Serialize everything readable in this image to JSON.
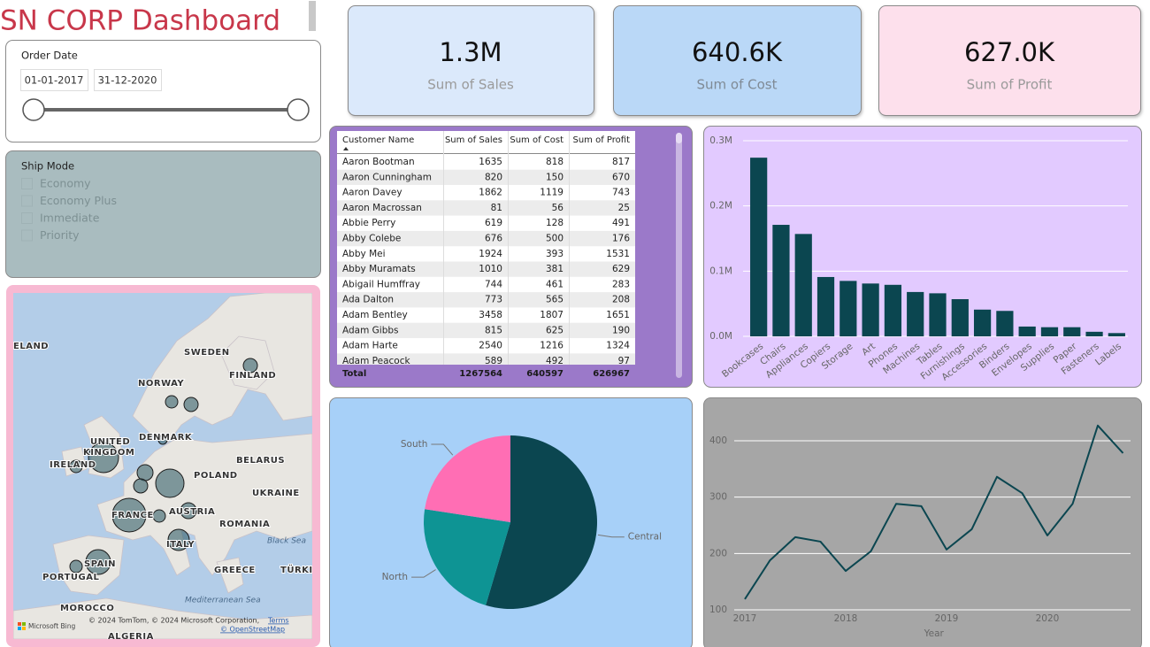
{
  "header": {
    "title": "SN CORP Dashboard"
  },
  "filters": {
    "order_date": {
      "label": "Order Date",
      "start": "01-01-2017",
      "end": "31-12-2020"
    },
    "ship_mode": {
      "label": "Ship Mode",
      "options": [
        "Economy",
        "Economy Plus",
        "Immediate",
        "Priority"
      ]
    }
  },
  "kpis": [
    {
      "value": "1.3M",
      "label": "Sum of Sales"
    },
    {
      "value": "640.6K",
      "label": "Sum of Cost"
    },
    {
      "value": "627.0K",
      "label": "Sum of Profit"
    }
  ],
  "table": {
    "columns": [
      "Customer Name",
      "Sum of Sales",
      "Sum of Cost",
      "Sum of Profit"
    ],
    "rows": [
      [
        "Aaron Bootman",
        1635,
        818,
        817
      ],
      [
        "Aaron Cunningham",
        820,
        150,
        670
      ],
      [
        "Aaron Davey",
        1862,
        1119,
        743
      ],
      [
        "Aaron Macrossan",
        81,
        56,
        25
      ],
      [
        "Abbie Perry",
        619,
        128,
        491
      ],
      [
        "Abby Colebe",
        676,
        500,
        176
      ],
      [
        "Abby Mei",
        1924,
        393,
        1531
      ],
      [
        "Abby Muramats",
        1010,
        381,
        629
      ],
      [
        "Abigail Humffray",
        744,
        461,
        283
      ],
      [
        "Ada Dalton",
        773,
        565,
        208
      ],
      [
        "Adam Bentley",
        3458,
        1807,
        1651
      ],
      [
        "Adam Gibbs",
        815,
        625,
        190
      ],
      [
        "Adam Harte",
        2540,
        1216,
        1324
      ],
      [
        "Adam Peacock",
        589,
        492,
        97
      ]
    ],
    "total": [
      "Total",
      1267564,
      640597,
      626967
    ]
  },
  "map": {
    "labels": [
      "ELAND",
      "SWEDEN",
      "FINLAND",
      "NORWAY",
      "UNITED",
      "KINGDOM",
      "DENMARK",
      "IRELAND",
      "BELARUS",
      "POLAND",
      "UKRAINE",
      "FRANCE",
      "AUSTRIA",
      "ROMANIA",
      "ITALY",
      "SPAIN",
      "PORTUGAL",
      "GREECE",
      "TÜRKI",
      "MOROCCO",
      "ALGERIA"
    ],
    "seas": [
      "Black Sea",
      "Mediterranean Sea"
    ],
    "attribution": [
      "Microsoft Bing",
      "© 2024 TomTom, © 2024 Microsoft Corporation,",
      "Terms",
      "© OpenStreetMap"
    ]
  },
  "chart_data": [
    {
      "type": "bar",
      "color": "#0b4650",
      "grid": true,
      "categories": [
        "Bookcases",
        "Chairs",
        "Appliances",
        "Copiers",
        "Storage",
        "Art",
        "Phones",
        "Machines",
        "Tables",
        "Furnishings",
        "Accessories",
        "Binders",
        "Envelopes",
        "Supplies",
        "Paper",
        "Fasteners",
        "Labels"
      ],
      "values": [
        274000,
        171000,
        157000,
        91000,
        85000,
        81000,
        79000,
        68000,
        66000,
        57000,
        41000,
        39000,
        15000,
        14000,
        14000,
        7000,
        5000
      ],
      "ylim": [
        0,
        300000
      ],
      "yticks": [
        {
          "value": 0,
          "label": "0.0M"
        },
        {
          "value": 100000,
          "label": "0.1M"
        },
        {
          "value": 200000,
          "label": "0.2M"
        },
        {
          "value": 300000,
          "label": "0.3M"
        }
      ]
    },
    {
      "type": "pie",
      "categories": [
        "Central",
        "North",
        "South"
      ],
      "values": [
        54.6,
        22.8,
        22.6
      ],
      "colors": [
        "#0b4650",
        "#0e9494",
        "#ff6eb4"
      ]
    },
    {
      "type": "line",
      "color": "#0b4650",
      "grid": true,
      "x_label": "Year",
      "x": [
        2017,
        2017.25,
        2017.5,
        2017.75,
        2018,
        2018.25,
        2018.5,
        2018.75,
        2019,
        2019.25,
        2019.5,
        2019.75,
        2020,
        2020.25,
        2020.5,
        2020.75
      ],
      "values": [
        119,
        188,
        229,
        221,
        169,
        204,
        288,
        284,
        207,
        243,
        336,
        307,
        232,
        288,
        427,
        378
      ],
      "xlim": [
        2017,
        2020.75
      ],
      "xticks": [
        2017,
        2018,
        2019,
        2020
      ],
      "ylim": [
        100,
        440
      ],
      "yticks": [
        100,
        200,
        300,
        400
      ]
    }
  ]
}
